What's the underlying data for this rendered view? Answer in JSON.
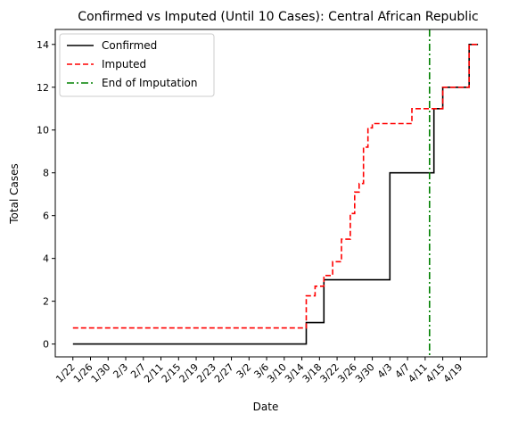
{
  "chart_data": {
    "type": "line",
    "title": "Confirmed vs Imputed (Until 10 Cases): Central African Republic",
    "xlabel": "Date",
    "ylabel": "Total Cases",
    "x_tick_labels": [
      "1/22",
      "1/26",
      "1/30",
      "2/3",
      "2/7",
      "2/11",
      "2/15",
      "2/19",
      "2/23",
      "2/27",
      "3/2",
      "3/6",
      "3/10",
      "3/14",
      "3/18",
      "3/22",
      "3/26",
      "3/30",
      "4/3",
      "4/7",
      "4/11",
      "4/15",
      "4/19"
    ],
    "x_start": "1/22",
    "x_tick_step_days": 4,
    "xlim": [
      -4,
      94
    ],
    "ylim": [
      -0.6,
      14.7
    ],
    "y_ticks": [
      0,
      2,
      4,
      6,
      8,
      10,
      12,
      14
    ],
    "grid": false,
    "legend_position": "top-left",
    "series": [
      {
        "name": "Confirmed",
        "style": "solid",
        "color": "#000000",
        "x": [
          0,
          53,
          53,
          57,
          57,
          59,
          59,
          72,
          72,
          82,
          82,
          84,
          84,
          90,
          90,
          92
        ],
        "y": [
          0,
          0,
          1,
          1,
          3,
          3,
          3,
          3,
          8,
          8,
          11,
          11,
          12,
          12,
          14,
          14
        ]
      },
      {
        "name": "Imputed",
        "style": "dashed",
        "color": "#ff0000",
        "x": [
          0,
          53,
          53,
          55,
          55,
          57,
          57,
          59,
          59,
          61,
          61,
          63,
          63,
          64,
          64,
          65,
          65,
          66,
          66,
          67,
          67,
          68,
          68,
          69,
          69,
          70,
          70,
          72,
          72,
          77,
          77,
          82,
          82,
          84,
          84,
          89,
          89,
          90,
          90,
          92
        ],
        "y": [
          0.75,
          0.75,
          2.25,
          2.25,
          2.7,
          2.7,
          3.2,
          3.2,
          3.85,
          3.85,
          4.9,
          4.9,
          6.1,
          6.1,
          7.1,
          7.1,
          7.5,
          7.5,
          9.2,
          9.2,
          10.1,
          10.1,
          10.3,
          10.3,
          10.3,
          10.3,
          10.3,
          10.3,
          10.3,
          10.3,
          11,
          11,
          11,
          11,
          12,
          12,
          12,
          12,
          14,
          14
        ]
      },
      {
        "name": "End of Imputation",
        "style": "dashdot",
        "color": "#008000",
        "vertical_x": 81
      }
    ]
  }
}
